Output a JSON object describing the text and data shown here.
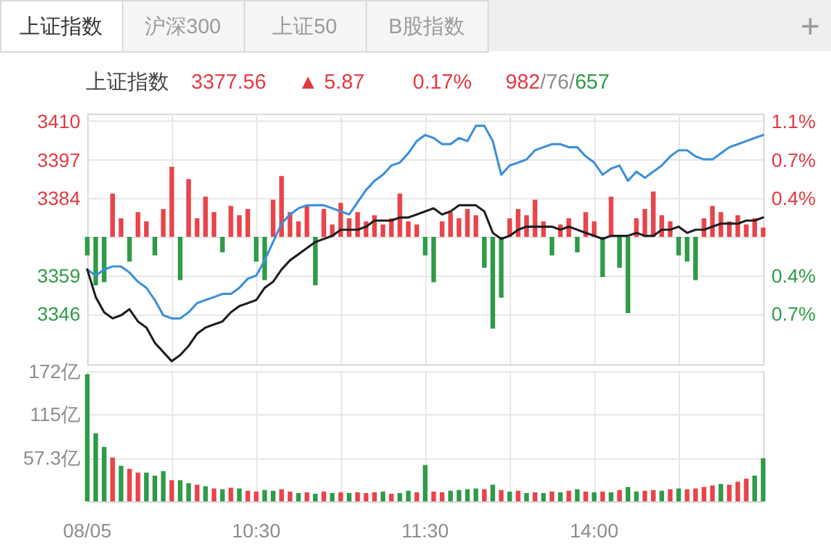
{
  "chart_data": [
    {
      "type": "other",
      "annotations": [
        "上证指数",
        "沪深300",
        "上证50",
        "B股指数",
        "+"
      ]
    },
    {
      "type": "line",
      "title": "上证指数",
      "annotations": [
        "3377.56",
        "▲ 5.87",
        "0.17%",
        "982/76/657"
      ],
      "categories": [
        null,
        null,
        null,
        null,
        null,
        null,
        null,
        null,
        null,
        null,
        null,
        null,
        null,
        null,
        null,
        null,
        null,
        null,
        null,
        null,
        null,
        null,
        null,
        null,
        null,
        null,
        null,
        null,
        null,
        null,
        null,
        null,
        null,
        null,
        null,
        null,
        null,
        null,
        null,
        null,
        null,
        null,
        null,
        null,
        null,
        null,
        null,
        null,
        null,
        null,
        null,
        null,
        null,
        null,
        null,
        null,
        null,
        null,
        null,
        null,
        null,
        null,
        null,
        null,
        null,
        null,
        null,
        null,
        null,
        null,
        null,
        null,
        null,
        null,
        null,
        null,
        null,
        null,
        null,
        null,
        null
      ],
      "series": [
        {
          "type": "bar",
          "axis": "y2",
          "color": "#e8444a",
          "values": [
            null,
            null,
            null,
            0.42,
            0.18,
            null,
            0.24,
            0.15,
            null,
            0.27,
            0.68,
            null,
            0.56,
            0.18,
            0.39,
            0.24,
            null,
            0.3,
            0.21,
            0.27,
            null,
            null,
            0.36,
            0.59,
            0.24,
            0.15,
            0.3,
            null,
            0.27,
            0.12,
            0.33,
            0.18,
            0.24,
            0.15,
            0.21,
            0.12,
            0.18,
            0.42,
            0.15,
            0.12,
            null,
            null,
            0.15,
            0.24,
            0.18,
            0.27,
            0.21,
            null,
            null,
            null,
            0.18,
            0.27,
            0.21,
            0.36,
            0.15,
            null,
            0.12,
            0.18,
            null,
            0.24,
            0.15,
            null,
            0.39,
            null,
            null,
            0.18,
            0.27,
            0.44,
            0.21,
            0.15,
            null,
            null,
            null,
            0.18,
            0.3,
            0.24,
            0.15,
            0.21,
            0.12,
            0.18,
            0.09
          ]
        },
        {
          "type": "bar",
          "axis": "y2",
          "color": "#2f9b48",
          "values": [
            -0.18,
            -0.47,
            -0.44,
            null,
            null,
            -0.24,
            null,
            null,
            -0.18,
            null,
            null,
            -0.42,
            null,
            null,
            null,
            null,
            -0.15,
            null,
            null,
            null,
            -0.24,
            -0.42,
            null,
            null,
            null,
            null,
            null,
            -0.47,
            null,
            null,
            null,
            null,
            null,
            null,
            null,
            null,
            null,
            null,
            null,
            null,
            -0.18,
            -0.44,
            null,
            null,
            null,
            null,
            null,
            -0.3,
            -0.89,
            -0.59,
            null,
            null,
            null,
            null,
            null,
            -0.18,
            null,
            null,
            -0.15,
            null,
            null,
            -0.39,
            null,
            -0.3,
            -0.74,
            null,
            null,
            null,
            null,
            null,
            -0.18,
            -0.24,
            -0.42,
            null,
            null,
            null,
            null,
            null,
            null,
            null,
            null
          ]
        },
        {
          "color": "#3d8fdc",
          "values": [
            3361,
            3359,
            3361,
            3362,
            3362,
            3360,
            3357,
            3355,
            3351,
            3346,
            3345,
            3345,
            3347,
            3350,
            3351,
            3352,
            3353,
            3353,
            3355,
            3358,
            3359,
            3364,
            3370,
            3376,
            3379,
            3381,
            3382,
            3382,
            3382,
            3381,
            3380,
            3379,
            3383,
            3387,
            3390,
            3392,
            3395,
            3396,
            3399,
            3403,
            3405,
            3404,
            3402,
            3402,
            3404,
            3403,
            3408,
            3408,
            3403,
            3392,
            3395,
            3396,
            3397,
            3400,
            3401,
            3402,
            3402,
            3401,
            3401,
            3398,
            3396,
            3392,
            3394,
            3395,
            3390,
            3393,
            3391,
            3393,
            3395,
            3398,
            3400,
            3400,
            3398,
            3397,
            3397,
            3399,
            3401,
            3402,
            3403,
            3404,
            3405
          ]
        },
        {
          "color": "#1e1e1e",
          "values": [
            3361,
            3352,
            3347,
            3345,
            3346,
            3348,
            3344,
            3342,
            3337,
            3334,
            3331,
            3333,
            3336,
            3340,
            3342,
            3343,
            3344,
            3347,
            3349,
            3350,
            3351,
            3355,
            3357,
            3361,
            3364,
            3366,
            3368,
            3370,
            3371,
            3372,
            3374,
            3374,
            3374,
            3375,
            3377,
            3377,
            3377,
            3378,
            3378,
            3379,
            3380,
            3381,
            3379,
            3380,
            3382,
            3382,
            3382,
            3380,
            3373,
            3371,
            3372,
            3374,
            3375,
            3375,
            3375,
            3375,
            3374,
            3375,
            3374,
            3373,
            3372,
            3371,
            3372,
            3372,
            3372,
            3373,
            3372,
            3372,
            3374,
            3374,
            3375,
            3373,
            3374,
            3374,
            3375,
            3376,
            3376,
            3376,
            3377,
            3377,
            3378
          ]
        }
      ],
      "ylim": [
        3330,
        3412
      ],
      "yticks": [
        {
          "value": 3409.6,
          "label": "3410"
        },
        {
          "value": 3396.9,
          "label": "3397"
        },
        {
          "value": 3384.3,
          "label": "3384"
        },
        {
          "value": 3371.7,
          "label": null
        },
        {
          "value": 3359.1,
          "label": "3359"
        },
        {
          "value": 3346.5,
          "label": "3346"
        }
      ],
      "y2lim": [
        -1.236,
        1.196
      ],
      "y2ticks": [
        {
          "value": 1.123,
          "label": "1.1%"
        },
        {
          "value": 0.748,
          "label": "0.7%"
        },
        {
          "value": 0.374,
          "label": "0.4%"
        },
        {
          "value": 0,
          "label": null
        },
        {
          "value": -0.374,
          "label": "0.4%"
        },
        {
          "value": -0.748,
          "label": "0.7%"
        }
      ],
      "grid": true
    },
    {
      "type": "bar",
      "categories": [
        "08/05",
        null,
        null,
        null,
        null,
        null,
        null,
        null,
        null,
        null,
        null,
        null,
        null,
        null,
        null,
        null,
        null,
        null,
        null,
        null,
        "10:30",
        null,
        null,
        null,
        null,
        null,
        null,
        null,
        null,
        null,
        null,
        null,
        null,
        null,
        null,
        null,
        null,
        null,
        null,
        null,
        "11:30",
        null,
        null,
        null,
        null,
        null,
        null,
        null,
        null,
        null,
        null,
        null,
        null,
        null,
        null,
        null,
        null,
        null,
        null,
        null,
        "14:00",
        null,
        null,
        null,
        null,
        null,
        null,
        null,
        null,
        null,
        null,
        null,
        null,
        null,
        null,
        null,
        null,
        null,
        null,
        null,
        null
      ],
      "series": [
        {
          "color": "#e8444a",
          "values": [
            null,
            null,
            null,
            58,
            null,
            43,
            38,
            null,
            null,
            null,
            28,
            null,
            null,
            22,
            null,
            17,
            null,
            18,
            null,
            14,
            13,
            null,
            null,
            16,
            13,
            null,
            12,
            null,
            13,
            null,
            12,
            null,
            12,
            11,
            12,
            null,
            10,
            null,
            null,
            12,
            null,
            13,
            12,
            null,
            null,
            null,
            null,
            16,
            null,
            15,
            null,
            14,
            null,
            12,
            null,
            13,
            null,
            14,
            null,
            13,
            null,
            13,
            null,
            15,
            null,
            null,
            14,
            15,
            null,
            16,
            null,
            16,
            17,
            19,
            21,
            null,
            22,
            26,
            30,
            null,
            null
          ]
        },
        {
          "color": "#2f9b48",
          "values": [
            168,
            90,
            72,
            null,
            47,
            null,
            null,
            38,
            34,
            40,
            null,
            28,
            24,
            null,
            20,
            null,
            16,
            null,
            17,
            null,
            null,
            15,
            14,
            null,
            null,
            11,
            null,
            10,
            null,
            11,
            null,
            11,
            null,
            null,
            null,
            13,
            null,
            11,
            14,
            null,
            48,
            null,
            null,
            14,
            15,
            16,
            17,
            null,
            22,
            null,
            13,
            null,
            11,
            null,
            11,
            null,
            12,
            null,
            16,
            null,
            12,
            null,
            12,
            null,
            19,
            13,
            null,
            null,
            14,
            null,
            17,
            null,
            null,
            null,
            null,
            23,
            null,
            null,
            null,
            34,
            57
          ]
        }
      ],
      "ylim": [
        0,
        172
      ],
      "yticks": [
        {
          "value": 57.3,
          "label": "57.3亿"
        },
        {
          "value": 115,
          "label": "115亿"
        },
        {
          "value": 172,
          "label": "172亿"
        }
      ],
      "grid": true
    }
  ]
}
